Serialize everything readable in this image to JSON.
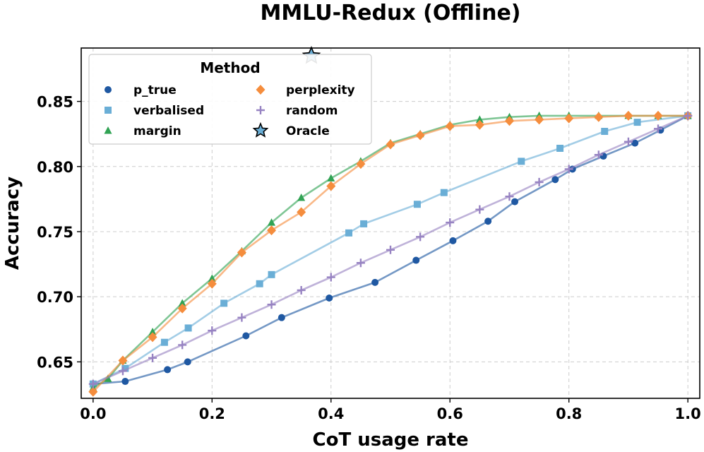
{
  "chart_data": {
    "type": "line",
    "title": "MMLU-Redux (Offline)",
    "xlabel": "CoT usage rate",
    "ylabel": "Accuracy",
    "xlim": [
      -0.02,
      1.02
    ],
    "ylim": [
      0.622,
      0.891
    ],
    "xticks": [
      0.0,
      0.2,
      0.4,
      0.6,
      0.8,
      1.0
    ],
    "xtick_labels": [
      "0.0",
      "0.2",
      "0.4",
      "0.6",
      "0.8",
      "1.0"
    ],
    "yticks": [
      0.65,
      0.7,
      0.75,
      0.8,
      0.85
    ],
    "ytick_labels": [
      "0.65",
      "0.70",
      "0.75",
      "0.80",
      "0.85"
    ],
    "grid": true,
    "legend": {
      "title": "Method",
      "position": "top-left"
    },
    "series": [
      {
        "name": "p_true",
        "color": "#1f58a2",
        "marker": "circle",
        "x": [
          0.0,
          0.054,
          0.125,
          0.159,
          0.257,
          0.317,
          0.397,
          0.474,
          0.543,
          0.605,
          0.664,
          0.709,
          0.777,
          0.806,
          0.858,
          0.911,
          0.954,
          1.0
        ],
        "y": [
          0.633,
          0.635,
          0.644,
          0.65,
          0.67,
          0.684,
          0.699,
          0.711,
          0.728,
          0.743,
          0.758,
          0.773,
          0.79,
          0.798,
          0.808,
          0.818,
          0.828,
          0.839
        ]
      },
      {
        "name": "verbalised",
        "color": "#6aaed6",
        "marker": "square",
        "x": [
          0.0,
          0.054,
          0.12,
          0.16,
          0.22,
          0.28,
          0.3,
          0.43,
          0.455,
          0.545,
          0.59,
          0.72,
          0.785,
          0.86,
          0.915,
          1.0
        ],
        "y": [
          0.633,
          0.645,
          0.665,
          0.676,
          0.695,
          0.71,
          0.717,
          0.749,
          0.756,
          0.771,
          0.78,
          0.804,
          0.814,
          0.827,
          0.834,
          0.839
        ]
      },
      {
        "name": "margin",
        "color": "#31a354",
        "marker": "triangle",
        "x": [
          0.0,
          0.025,
          0.05,
          0.1,
          0.15,
          0.2,
          0.25,
          0.3,
          0.35,
          0.4,
          0.45,
          0.5,
          0.55,
          0.6,
          0.65,
          0.7,
          0.75,
          0.8,
          0.85,
          0.9,
          0.95,
          1.0
        ],
        "y": [
          0.63,
          0.637,
          0.651,
          0.673,
          0.695,
          0.714,
          0.735,
          0.757,
          0.776,
          0.791,
          0.804,
          0.818,
          0.825,
          0.832,
          0.836,
          0.838,
          0.839,
          0.839,
          0.839,
          0.839,
          0.839,
          0.839
        ]
      },
      {
        "name": "perplexity",
        "color": "#f58d3d",
        "marker": "diamond",
        "x": [
          0.0,
          0.05,
          0.1,
          0.15,
          0.2,
          0.25,
          0.3,
          0.35,
          0.4,
          0.45,
          0.5,
          0.55,
          0.6,
          0.65,
          0.7,
          0.75,
          0.8,
          0.85,
          0.9,
          0.95,
          1.0
        ],
        "y": [
          0.627,
          0.651,
          0.669,
          0.691,
          0.71,
          0.734,
          0.751,
          0.765,
          0.785,
          0.802,
          0.817,
          0.824,
          0.831,
          0.832,
          0.835,
          0.836,
          0.837,
          0.838,
          0.839,
          0.839,
          0.839
        ]
      },
      {
        "name": "random",
        "color": "#9783c2",
        "marker": "plus",
        "x": [
          0.0,
          0.05,
          0.1,
          0.15,
          0.2,
          0.25,
          0.3,
          0.35,
          0.4,
          0.45,
          0.5,
          0.55,
          0.6,
          0.65,
          0.7,
          0.75,
          0.8,
          0.85,
          0.9,
          0.95,
          1.0
        ],
        "y": [
          0.633,
          0.643,
          0.653,
          0.663,
          0.674,
          0.684,
          0.694,
          0.705,
          0.715,
          0.726,
          0.736,
          0.746,
          0.757,
          0.767,
          0.777,
          0.788,
          0.798,
          0.809,
          0.819,
          0.829,
          0.839
        ]
      },
      {
        "name": "Oracle",
        "color": "#6aaed6",
        "marker": "star",
        "x": [
          0.367
        ],
        "y": [
          0.885
        ]
      }
    ]
  }
}
